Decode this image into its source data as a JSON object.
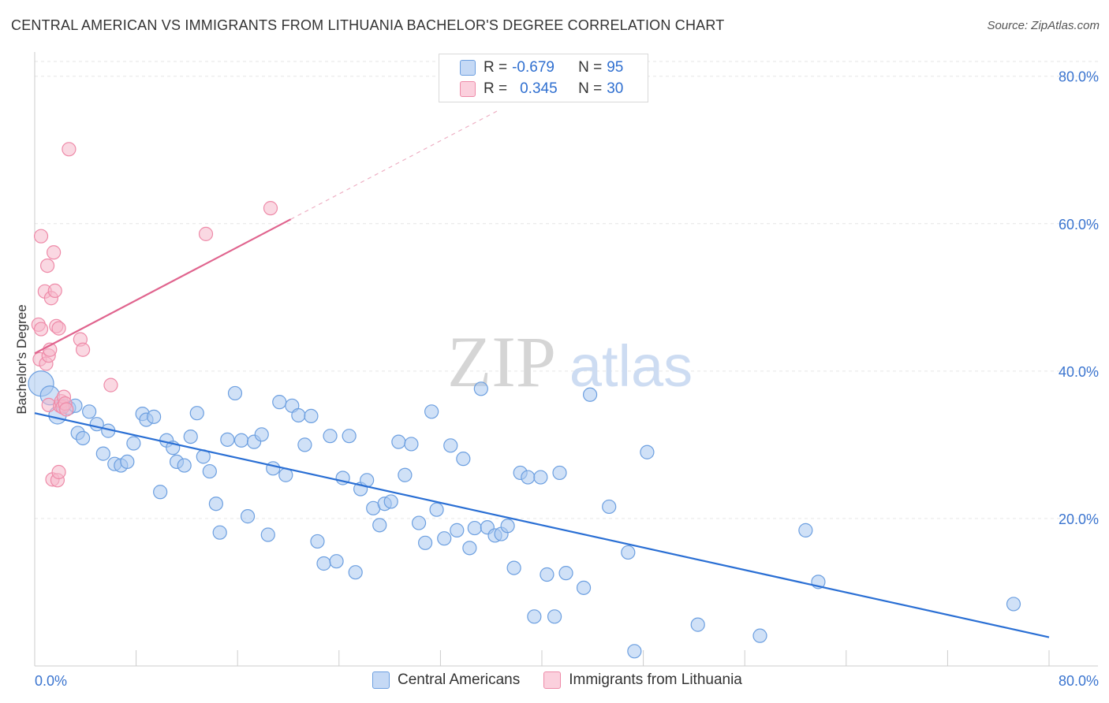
{
  "header": {
    "title": "CENTRAL AMERICAN VS IMMIGRANTS FROM LITHUANIA BACHELOR'S DEGREE CORRELATION CHART",
    "source": "Source: ZipAtlas.com"
  },
  "watermark": {
    "zip": "ZIP",
    "atlas": "atlas"
  },
  "legend": {
    "rows": [
      {
        "r_label": "R =",
        "r_value": "-0.679",
        "n_label": "N =",
        "n_value": "95"
      },
      {
        "r_label": "R =",
        "r_value": "0.345",
        "n_label": "N =",
        "n_value": "30"
      }
    ]
  },
  "colors": {
    "blue_fill": "#a9c8f0",
    "blue_stroke": "#6c9fe0",
    "blue_line": "#2a6fd4",
    "pink_fill": "#f6b8cb",
    "pink_stroke": "#ee8aa8",
    "pink_line": "#e0648e",
    "tick_label": "#3a74cf",
    "grid": "#e6e6e6"
  },
  "chart_data": {
    "type": "scatter",
    "title": "CENTRAL AMERICAN VS IMMIGRANTS FROM LITHUANIA BACHELOR'S DEGREE CORRELATION CHART",
    "xlabel": "",
    "ylabel": "Bachelor's Degree",
    "xlim": [
      0,
      80
    ],
    "ylim": [
      0,
      82
    ],
    "x_tick_labels": [
      "0.0%",
      "80.0%"
    ],
    "y_ticks": [
      20,
      40,
      60,
      80
    ],
    "y_tick_labels": [
      "20.0%",
      "40.0%",
      "60.0%",
      "80.0%"
    ],
    "grid": true,
    "legend_position": "top-center",
    "series": [
      {
        "name": "Central Americans",
        "r": -0.679,
        "n": 95,
        "trend": {
          "x0": 0,
          "y0": 34.3,
          "x1": 80,
          "y1": 3.9
        },
        "points": [
          [
            0.5,
            38.3
          ],
          [
            1.2,
            36.7
          ],
          [
            1.8,
            34.0
          ],
          [
            2.3,
            35.3
          ],
          [
            2.7,
            35.0
          ],
          [
            3.2,
            35.3
          ],
          [
            3.4,
            31.6
          ],
          [
            3.8,
            30.9
          ],
          [
            4.3,
            34.5
          ],
          [
            4.9,
            32.8
          ],
          [
            5.4,
            28.8
          ],
          [
            5.8,
            31.9
          ],
          [
            6.3,
            27.4
          ],
          [
            6.8,
            27.2
          ],
          [
            7.3,
            27.7
          ],
          [
            7.8,
            30.2
          ],
          [
            8.5,
            34.2
          ],
          [
            8.8,
            33.4
          ],
          [
            9.4,
            33.8
          ],
          [
            9.9,
            23.6
          ],
          [
            10.4,
            30.6
          ],
          [
            10.9,
            29.6
          ],
          [
            11.2,
            27.7
          ],
          [
            11.8,
            27.2
          ],
          [
            12.3,
            31.1
          ],
          [
            12.8,
            34.3
          ],
          [
            13.3,
            28.4
          ],
          [
            13.8,
            26.4
          ],
          [
            14.3,
            22.0
          ],
          [
            14.6,
            18.1
          ],
          [
            15.2,
            30.7
          ],
          [
            15.8,
            37.0
          ],
          [
            16.3,
            30.6
          ],
          [
            16.8,
            20.3
          ],
          [
            17.3,
            30.4
          ],
          [
            17.9,
            31.4
          ],
          [
            18.4,
            17.8
          ],
          [
            18.8,
            26.8
          ],
          [
            19.3,
            35.8
          ],
          [
            19.8,
            25.9
          ],
          [
            20.3,
            35.3
          ],
          [
            20.8,
            34.0
          ],
          [
            21.3,
            30.0
          ],
          [
            21.8,
            33.9
          ],
          [
            22.3,
            16.9
          ],
          [
            22.8,
            13.9
          ],
          [
            23.3,
            31.2
          ],
          [
            23.8,
            14.2
          ],
          [
            24.3,
            25.5
          ],
          [
            24.8,
            31.2
          ],
          [
            25.3,
            12.7
          ],
          [
            25.7,
            24.0
          ],
          [
            26.2,
            25.2
          ],
          [
            26.7,
            21.4
          ],
          [
            27.2,
            19.1
          ],
          [
            27.6,
            22.0
          ],
          [
            28.1,
            22.3
          ],
          [
            28.7,
            30.4
          ],
          [
            29.2,
            25.9
          ],
          [
            29.7,
            30.1
          ],
          [
            30.3,
            19.4
          ],
          [
            30.8,
            16.7
          ],
          [
            31.3,
            34.5
          ],
          [
            31.7,
            21.2
          ],
          [
            32.3,
            17.3
          ],
          [
            32.8,
            29.9
          ],
          [
            33.3,
            18.4
          ],
          [
            33.8,
            28.1
          ],
          [
            34.3,
            16.0
          ],
          [
            34.7,
            18.7
          ],
          [
            35.2,
            37.6
          ],
          [
            35.7,
            18.8
          ],
          [
            36.3,
            17.7
          ],
          [
            36.8,
            17.9
          ],
          [
            37.3,
            19.0
          ],
          [
            37.8,
            13.3
          ],
          [
            38.3,
            26.2
          ],
          [
            38.9,
            25.6
          ],
          [
            39.4,
            6.7
          ],
          [
            39.9,
            25.6
          ],
          [
            40.4,
            12.4
          ],
          [
            41.0,
            6.7
          ],
          [
            41.4,
            26.2
          ],
          [
            41.9,
            12.6
          ],
          [
            43.3,
            10.6
          ],
          [
            43.8,
            36.8
          ],
          [
            45.3,
            21.6
          ],
          [
            46.8,
            15.4
          ],
          [
            47.3,
            2.0
          ],
          [
            48.3,
            29.0
          ],
          [
            52.3,
            5.6
          ],
          [
            57.2,
            4.1
          ],
          [
            60.8,
            18.4
          ],
          [
            61.8,
            11.4
          ],
          [
            77.2,
            8.4
          ]
        ]
      },
      {
        "name": "Immigrants from Lithuania",
        "r": 0.345,
        "n": 30,
        "trend": {
          "x0": 0,
          "y0": 42.4,
          "x1": 20.2,
          "y1": 60.6,
          "dashed_to": {
            "x": 36.5,
            "y": 75.3
          }
        },
        "points": [
          [
            0.3,
            46.3
          ],
          [
            0.4,
            41.6
          ],
          [
            0.5,
            45.7
          ],
          [
            0.5,
            58.3
          ],
          [
            0.8,
            50.8
          ],
          [
            0.9,
            41.0
          ],
          [
            1.0,
            54.3
          ],
          [
            1.1,
            42.1
          ],
          [
            1.1,
            35.4
          ],
          [
            1.2,
            42.9
          ],
          [
            1.3,
            49.9
          ],
          [
            1.4,
            25.3
          ],
          [
            1.5,
            56.1
          ],
          [
            1.6,
            50.9
          ],
          [
            1.7,
            46.1
          ],
          [
            1.8,
            25.2
          ],
          [
            1.9,
            45.8
          ],
          [
            1.9,
            26.3
          ],
          [
            2.0,
            35.3
          ],
          [
            2.1,
            35.9
          ],
          [
            2.2,
            35.1
          ],
          [
            2.3,
            36.5
          ],
          [
            2.4,
            35.6
          ],
          [
            2.5,
            34.8
          ],
          [
            2.7,
            70.1
          ],
          [
            3.6,
            44.3
          ],
          [
            3.8,
            42.9
          ],
          [
            6.0,
            38.1
          ],
          [
            13.5,
            58.6
          ],
          [
            18.6,
            62.1
          ]
        ]
      }
    ]
  },
  "bottom_legend": {
    "items": [
      {
        "label": "Central Americans"
      },
      {
        "label": "Immigrants from Lithuania"
      }
    ]
  }
}
